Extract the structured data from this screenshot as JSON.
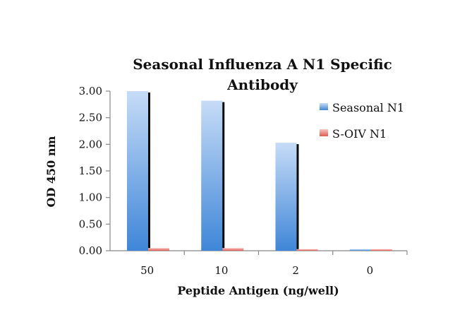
{
  "chart_data": {
    "type": "bar",
    "title": [
      "Seasonal Influenza A N1 Specific",
      "Antibody"
    ],
    "xlabel": "Peptide Antigen (ng/well)",
    "ylabel": "OD 450 nm",
    "categories": [
      "50",
      "10",
      "2",
      "0"
    ],
    "series": [
      {
        "name": "Seasonal N1",
        "values": [
          3.0,
          2.82,
          2.03,
          0.03
        ]
      },
      {
        "name": "S-OIV N1",
        "values": [
          0.05,
          0.05,
          0.03,
          0.03
        ]
      }
    ],
    "ylim": [
      0,
      3.0
    ],
    "yticks": [
      "0.00",
      "0.50",
      "1.00",
      "1.50",
      "2.00",
      "2.50",
      "3.00"
    ],
    "legend_position": "right",
    "grid": false,
    "colors": {
      "series_0_light": "#c6dcf7",
      "series_0_dark": "#3f86d8",
      "series_0_shadow": "#0a0a0a",
      "series_1_light": "#f8c4c0",
      "series_1_dark": "#e05a52"
    }
  }
}
